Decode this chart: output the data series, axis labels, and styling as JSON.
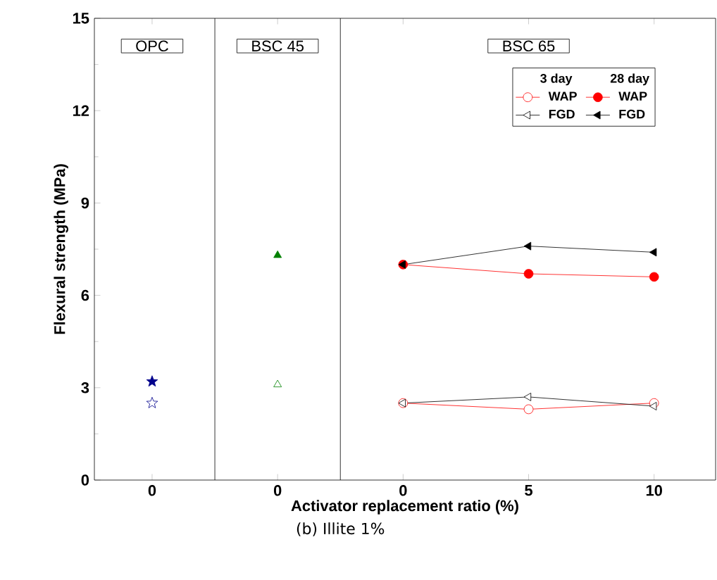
{
  "chart_data": {
    "type": "line",
    "ylabel": "Flexural strength (MPa)",
    "xlabel": "Activator replacement ratio (%)",
    "categories": [
      "0",
      "0",
      "0",
      "5",
      "10"
    ],
    "ylim": [
      0,
      15
    ],
    "yticks": [
      0,
      3,
      6,
      9,
      12,
      15
    ],
    "series": [
      {
        "type": "scatter",
        "color": "#00008b",
        "marker": "star",
        "values": [
          2.5,
          null,
          null,
          null,
          null
        ]
      },
      {
        "type": "scatter",
        "color": "#00008b",
        "marker": "star",
        "values": [
          3.2,
          null,
          null,
          null,
          null
        ]
      },
      {
        "type": "scatter",
        "color": "#008000",
        "marker": "triangle",
        "values": [
          null,
          3.1,
          null,
          null,
          null
        ]
      },
      {
        "type": "scatter",
        "color": "#008000",
        "marker": "triangle",
        "values": [
          null,
          7.3,
          null,
          null,
          null
        ]
      },
      {
        "name": "WAP",
        "color": "#ff0000",
        "marker": "circle",
        "values": [
          null,
          null,
          2.5,
          2.3,
          2.5
        ]
      },
      {
        "name": "WAP",
        "color": "#ff0000",
        "marker": "circle",
        "values": [
          null,
          null,
          7.0,
          6.7,
          6.6
        ]
      },
      {
        "name": "FGD",
        "color": "#000000",
        "marker": "triangle-left",
        "values": [
          null,
          null,
          2.5,
          2.7,
          2.4
        ]
      },
      {
        "name": "FGD",
        "color": "#000000",
        "marker": "triangle-left",
        "values": [
          null,
          null,
          7.0,
          7.6,
          7.4
        ]
      }
    ],
    "annotations": [
      "OPC",
      "BSC 45",
      "BSC 65",
      "3 day",
      "28 day",
      "(b) Illite 1%"
    ],
    "legend": "top right",
    "line_style": "solid"
  }
}
